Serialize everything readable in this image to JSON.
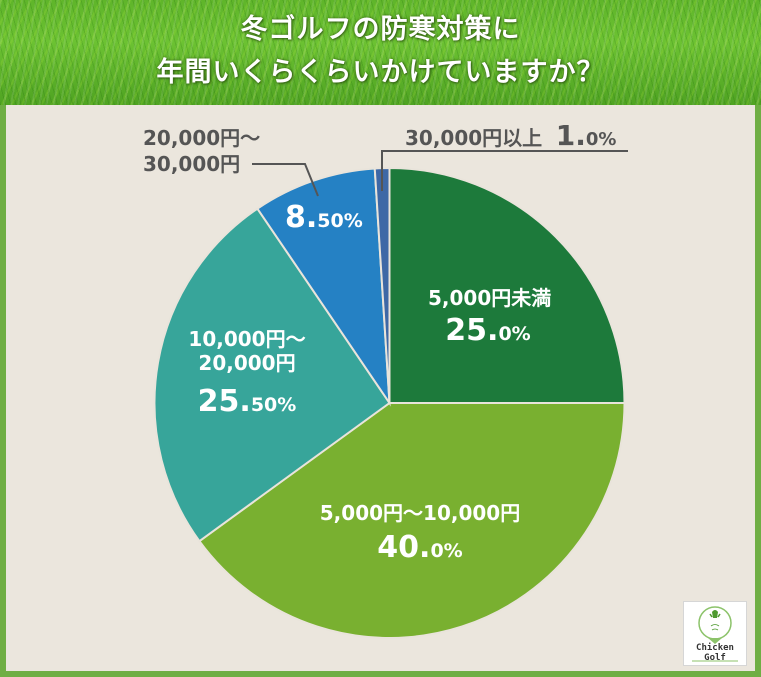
{
  "header": {
    "title_line1": "冬ゴルフの防寒対策に",
    "title_line2": "年間いくらくらいかけていますか？"
  },
  "chart_data": {
    "type": "pie",
    "title": "冬ゴルフの防寒対策に年間いくらくらいかけていますか？",
    "start_angle": "12 o'clock",
    "direction": "clockwise",
    "categories": [
      "5,000円未満",
      "5,000円～10,000円",
      "10,000円～20,000円",
      "20,000円～30,000円",
      "30,000円以上"
    ],
    "values": [
      25.0,
      40.0,
      25.5,
      8.5,
      1.0
    ],
    "unit": "%",
    "colors": [
      "#1d7a3b",
      "#79b030",
      "#37a59a",
      "#2581c4",
      "#3e68a6"
    ],
    "labels": [
      {
        "name": "5,000円未満",
        "int": "25.",
        "dec": "0%",
        "position": "inside"
      },
      {
        "name": "5,000円～10,000円",
        "int": "40.",
        "dec": "0%",
        "position": "inside"
      },
      {
        "name_line1": "10,000円～",
        "name_line2": "20,000円",
        "int": "25.",
        "dec": "50%",
        "position": "inside"
      },
      {
        "name_line1": "20,000円～",
        "name_line2": "30,000円",
        "int": "8.",
        "dec": "50%",
        "position": "outside-with-leader"
      },
      {
        "name": "30,000円以上",
        "int": "1.",
        "dec": "0%",
        "position": "outside-with-leader"
      }
    ],
    "legend": "none"
  },
  "logo": {
    "line1": "Chicken",
    "line2": "Golf"
  },
  "colors": {
    "frame_green": "#6fae44",
    "panel_bg": "#ebe6dd",
    "label_dark": "#555555"
  }
}
